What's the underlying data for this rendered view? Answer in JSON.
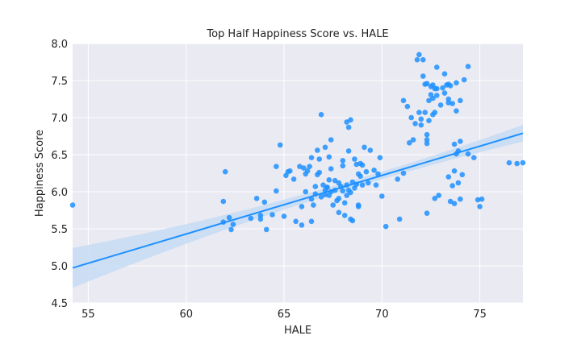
{
  "chart_data": {
    "type": "scatter",
    "title": "Top Half Happiness Score vs. HALE",
    "xlabel": "HALE",
    "ylabel": "Happiness Score",
    "xlim": [
      54.2,
      77.2
    ],
    "ylim": [
      4.5,
      8.0
    ],
    "xticks": [
      55,
      60,
      65,
      70,
      75
    ],
    "yticks": [
      4.5,
      5.0,
      5.5,
      6.0,
      6.5,
      7.0,
      7.5,
      8.0
    ],
    "xtick_labels": [
      "55",
      "60",
      "65",
      "70",
      "75"
    ],
    "ytick_labels": [
      "4.5",
      "5.0",
      "5.5",
      "6.0",
      "6.5",
      "7.0",
      "7.5",
      "8.0"
    ],
    "grid": true,
    "point_color": "#1e90ff",
    "line_color": "#1e90ff",
    "band_color": "#c6dcf5",
    "background": "#eaeaf2",
    "regression": {
      "slope": 0.079,
      "intercept": 0.69,
      "ci_half_width_at_ends": 0.27,
      "ci_half_width_at_center": 0.05,
      "center_x": 69.2
    },
    "points": [
      [
        54.2,
        5.82
      ],
      [
        61.9,
        5.59
      ],
      [
        61.9,
        5.87
      ],
      [
        62.0,
        6.27
      ],
      [
        62.2,
        5.65
      ],
      [
        62.3,
        5.49
      ],
      [
        62.4,
        5.56
      ],
      [
        63.3,
        5.64
      ],
      [
        63.6,
        5.91
      ],
      [
        63.8,
        5.63
      ],
      [
        63.8,
        5.68
      ],
      [
        64.0,
        5.86
      ],
      [
        64.1,
        5.49
      ],
      [
        64.4,
        5.69
      ],
      [
        64.6,
        6.34
      ],
      [
        64.6,
        6.01
      ],
      [
        64.8,
        6.63
      ],
      [
        65.0,
        5.67
      ],
      [
        65.1,
        6.22
      ],
      [
        65.2,
        6.27
      ],
      [
        65.3,
        6.28
      ],
      [
        65.5,
        6.17
      ],
      [
        65.6,
        5.6
      ],
      [
        65.8,
        6.34
      ],
      [
        65.9,
        5.55
      ],
      [
        65.9,
        5.8
      ],
      [
        66.0,
        6.32
      ],
      [
        66.1,
        6.24
      ],
      [
        66.1,
        6.0
      ],
      [
        66.2,
        6.28
      ],
      [
        66.3,
        6.34
      ],
      [
        66.4,
        6.46
      ],
      [
        66.4,
        5.9
      ],
      [
        66.4,
        5.6
      ],
      [
        66.5,
        5.82
      ],
      [
        66.6,
        6.07
      ],
      [
        66.6,
        5.97
      ],
      [
        66.7,
        6.56
      ],
      [
        66.7,
        6.23
      ],
      [
        66.8,
        6.26
      ],
      [
        66.8,
        6.44
      ],
      [
        66.9,
        5.93
      ],
      [
        66.9,
        7.04
      ],
      [
        67.0,
        6.09
      ],
      [
        67.1,
        5.96
      ],
      [
        67.1,
        6.02
      ],
      [
        67.1,
        6.6
      ],
      [
        67.2,
        6.06
      ],
      [
        67.2,
        6.06
      ],
      [
        67.3,
        5.95
      ],
      [
        67.3,
        6.16
      ],
      [
        67.3,
        6.47
      ],
      [
        67.4,
        6.7
      ],
      [
        67.4,
        6.31
      ],
      [
        67.4,
        6.0
      ],
      [
        67.5,
        5.82
      ],
      [
        67.6,
        6.15
      ],
      [
        67.6,
        6.02
      ],
      [
        67.7,
        5.88
      ],
      [
        67.8,
        6.12
      ],
      [
        67.8,
        5.91
      ],
      [
        67.8,
        5.72
      ],
      [
        67.9,
        6.07
      ],
      [
        68.0,
        6.42
      ],
      [
        68.0,
        6.35
      ],
      [
        68.0,
        6.01
      ],
      [
        68.1,
        5.68
      ],
      [
        68.1,
        5.85
      ],
      [
        68.2,
        6.09
      ],
      [
        68.2,
        6.94
      ],
      [
        68.2,
        5.95
      ],
      [
        68.3,
        6.87
      ],
      [
        68.3,
        6.55
      ],
      [
        68.3,
        6.02
      ],
      [
        68.4,
        6.97
      ],
      [
        68.4,
        5.99
      ],
      [
        68.4,
        5.63
      ],
      [
        68.5,
        5.61
      ],
      [
        68.5,
        6.13
      ],
      [
        68.6,
        6.05
      ],
      [
        68.6,
        6.44
      ],
      [
        68.7,
        6.37
      ],
      [
        68.7,
        6.1
      ],
      [
        68.8,
        5.82
      ],
      [
        68.8,
        5.8
      ],
      [
        68.8,
        6.24
      ],
      [
        68.9,
        6.38
      ],
      [
        68.9,
        6.21
      ],
      [
        69.0,
        6.36
      ],
      [
        69.0,
        6.09
      ],
      [
        69.1,
        6.6
      ],
      [
        69.2,
        6.27
      ],
      [
        69.3,
        6.12
      ],
      [
        69.4,
        6.56
      ],
      [
        69.6,
        6.29
      ],
      [
        69.7,
        6.09
      ],
      [
        69.8,
        6.24
      ],
      [
        69.9,
        6.46
      ],
      [
        70.0,
        5.94
      ],
      [
        70.2,
        5.53
      ],
      [
        70.8,
        6.17
      ],
      [
        70.9,
        5.63
      ],
      [
        71.1,
        6.25
      ],
      [
        71.1,
        7.23
      ],
      [
        71.3,
        7.15
      ],
      [
        71.4,
        6.66
      ],
      [
        71.5,
        7.0
      ],
      [
        71.6,
        6.7
      ],
      [
        71.7,
        6.92
      ],
      [
        71.8,
        7.78
      ],
      [
        71.9,
        7.07
      ],
      [
        71.9,
        7.85
      ],
      [
        72.0,
        6.9
      ],
      [
        72.0,
        6.98
      ],
      [
        72.1,
        7.78
      ],
      [
        72.1,
        7.56
      ],
      [
        72.2,
        7.07
      ],
      [
        72.2,
        7.45
      ],
      [
        72.3,
        7.46
      ],
      [
        72.3,
        5.71
      ],
      [
        72.3,
        6.7
      ],
      [
        72.3,
        6.77
      ],
      [
        72.3,
        6.65
      ],
      [
        72.4,
        6.96
      ],
      [
        72.4,
        7.23
      ],
      [
        72.5,
        7.42
      ],
      [
        72.5,
        7.31
      ],
      [
        72.6,
        7.26
      ],
      [
        72.6,
        7.44
      ],
      [
        72.6,
        7.04
      ],
      [
        72.7,
        7.07
      ],
      [
        72.7,
        5.91
      ],
      [
        72.7,
        7.39
      ],
      [
        72.8,
        7.68
      ],
      [
        72.8,
        7.3
      ],
      [
        72.8,
        7.39
      ],
      [
        72.9,
        5.95
      ],
      [
        73.0,
        7.17
      ],
      [
        73.1,
        7.4
      ],
      [
        73.2,
        7.59
      ],
      [
        73.2,
        7.33
      ],
      [
        73.3,
        7.44
      ],
      [
        73.4,
        7.2
      ],
      [
        73.4,
        7.45
      ],
      [
        73.4,
        7.25
      ],
      [
        73.4,
        6.2
      ],
      [
        73.5,
        5.87
      ],
      [
        73.5,
        7.43
      ],
      [
        73.6,
        7.19
      ],
      [
        73.6,
        6.08
      ],
      [
        73.7,
        6.64
      ],
      [
        73.7,
        6.28
      ],
      [
        73.7,
        5.84
      ],
      [
        73.8,
        7.47
      ],
      [
        73.8,
        6.51
      ],
      [
        73.8,
        7.09
      ],
      [
        73.9,
        6.12
      ],
      [
        73.9,
        6.55
      ],
      [
        74.0,
        6.68
      ],
      [
        74.0,
        7.23
      ],
      [
        74.0,
        5.9
      ],
      [
        74.1,
        6.23
      ],
      [
        74.2,
        7.51
      ],
      [
        74.4,
        7.69
      ],
      [
        74.4,
        6.51
      ],
      [
        74.7,
        6.46
      ],
      [
        74.9,
        5.89
      ],
      [
        75.0,
        5.8
      ],
      [
        75.1,
        5.9
      ],
      [
        76.5,
        6.39
      ],
      [
        76.9,
        6.38
      ],
      [
        77.2,
        6.39
      ]
    ]
  }
}
